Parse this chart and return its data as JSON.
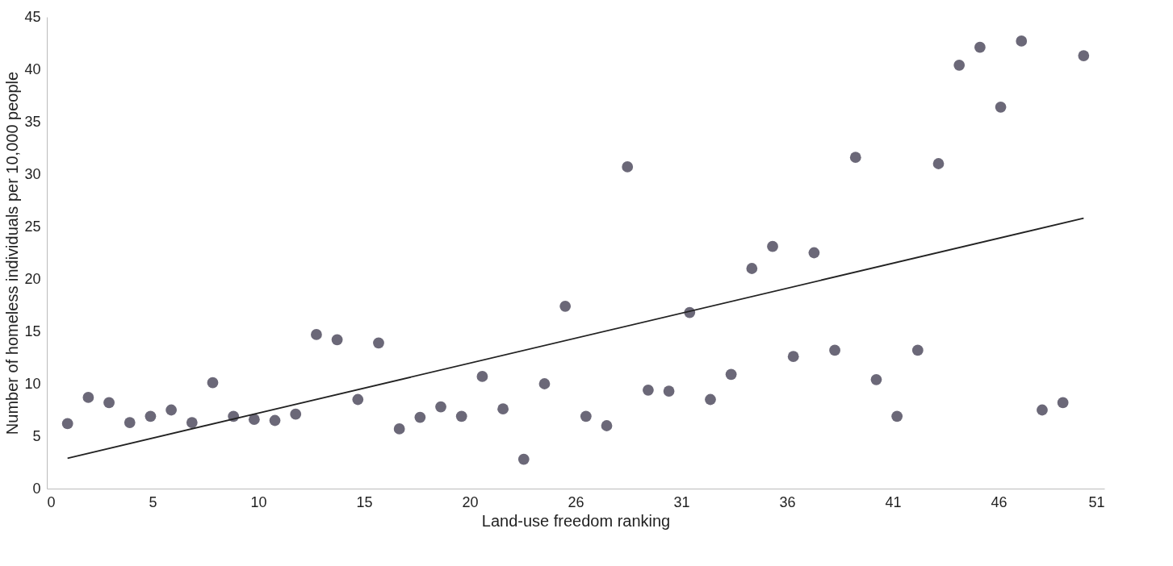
{
  "chart_data": {
    "type": "scatter",
    "xlabel": "Land-use freedom ranking",
    "ylabel": "Number of homeless individuals per 10,000 people",
    "x": [
      1,
      2,
      3,
      4,
      5,
      6,
      7,
      8,
      9,
      10,
      11,
      12,
      13,
      14,
      15,
      16,
      17,
      18,
      19,
      20,
      21,
      22,
      23,
      24,
      25,
      26,
      27,
      28,
      29,
      30,
      31,
      32,
      33,
      34,
      35,
      36,
      37,
      38,
      39,
      40,
      41,
      42,
      43,
      44,
      45,
      46,
      47,
      48,
      49,
      50
    ],
    "series": [
      {
        "color": "#6b6878",
        "marker": "circle",
        "values": [
          6.2,
          8.7,
          8.2,
          6.3,
          6.9,
          7.5,
          6.3,
          10.1,
          6.9,
          6.6,
          6.5,
          7.1,
          14.7,
          14.2,
          8.5,
          13.9,
          5.7,
          6.8,
          7.8,
          6.9,
          10.7,
          7.6,
          2.8,
          10.0,
          17.4,
          6.9,
          6.0,
          30.7,
          9.4,
          9.3,
          16.8,
          8.5,
          10.9,
          21.0,
          23.1,
          12.6,
          22.5,
          13.2,
          31.6,
          10.4,
          6.9,
          13.2,
          31.0,
          40.4,
          42.1,
          36.4,
          42.7,
          7.5,
          8.2,
          41.3
        ]
      },
      {
        "type": "line",
        "color": "#222222",
        "x": [
          1,
          50
        ],
        "values": [
          2.9,
          25.8
        ]
      }
    ],
    "xlim": [
      0,
      51
    ],
    "ylim": [
      0,
      45
    ],
    "xticks": [
      0,
      {
        "value": 5.1,
        "label": "5"
      },
      {
        "value": 10.2,
        "label": "10"
      },
      {
        "value": 15.3,
        "label": "15"
      },
      {
        "value": 20.4,
        "label": "20"
      },
      {
        "value": 25.5,
        "label": "26"
      },
      {
        "value": 30.6,
        "label": "31"
      },
      {
        "value": 35.7,
        "label": "36"
      },
      {
        "value": 40.8,
        "label": "41"
      },
      {
        "value": 45.9,
        "label": "46"
      },
      51
    ],
    "yticks": [
      0,
      5,
      10,
      15,
      20,
      25,
      30,
      35,
      40,
      45
    ],
    "grid": false,
    "line_style": "solid"
  }
}
